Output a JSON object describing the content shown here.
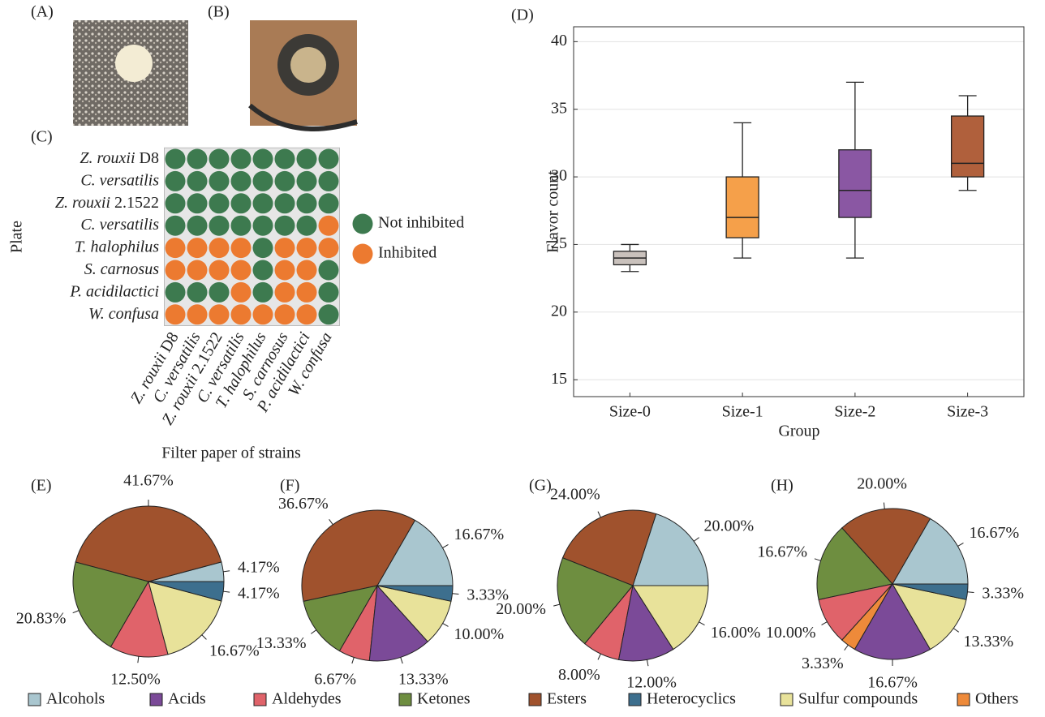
{
  "images": [
    {
      "label": "(A)"
    },
    {
      "label": "(B)"
    }
  ],
  "chart_data": [
    {
      "label": "(C)",
      "type": "matrix",
      "rows": [
        "Z. rouxii D8",
        "C. versatilis",
        "Z. rouxii 2.1522",
        "C. versatilis",
        "T. halophilus",
        "S. carnosus",
        "P. acidilactici",
        "W. confusa"
      ],
      "columns": [
        "Z. rouxii D8",
        "C. versatilis",
        "Z. rouxii 2.1522",
        "C. versatilis",
        "T. halophilus",
        "S. carnosus",
        "P. acidilactici",
        "W. confusa"
      ],
      "values": [
        [
          0,
          0,
          0,
          0,
          0,
          0,
          0,
          0
        ],
        [
          0,
          0,
          0,
          0,
          0,
          0,
          0,
          0
        ],
        [
          0,
          0,
          0,
          0,
          0,
          0,
          0,
          0
        ],
        [
          0,
          0,
          0,
          0,
          0,
          0,
          0,
          1
        ],
        [
          1,
          1,
          1,
          1,
          0,
          1,
          1,
          1
        ],
        [
          1,
          1,
          1,
          1,
          0,
          1,
          1,
          0
        ],
        [
          0,
          0,
          0,
          1,
          0,
          1,
          1,
          0
        ],
        [
          1,
          1,
          1,
          1,
          1,
          1,
          1,
          0
        ]
      ],
      "legend": [
        {
          "name": "Not inhibited",
          "color": "#3d7a4f"
        },
        {
          "name": "Inhibited",
          "color": "#ec7a30"
        }
      ],
      "ylabel": "Plate",
      "xlabel": "Filter paper of strains"
    },
    {
      "label": "(D)",
      "type": "box",
      "categories": [
        "Size-0",
        "Size-1",
        "Size-2",
        "Size-3"
      ],
      "boxes": [
        {
          "min": 23,
          "q1": 23.5,
          "median": 24,
          "q3": 24.5,
          "max": 25,
          "color": "#c9c1bc"
        },
        {
          "min": 24,
          "q1": 25.5,
          "median": 27,
          "q3": 30,
          "max": 34,
          "color": "#f5a04a"
        },
        {
          "min": 24,
          "q1": 27,
          "median": 29,
          "q3": 32,
          "max": 37,
          "color": "#8a57a3"
        },
        {
          "min": 29,
          "q1": 30,
          "median": 31,
          "q3": 34.5,
          "max": 36,
          "color": "#b0603c"
        }
      ],
      "ylim": [
        13.75,
        41.1
      ],
      "yticks": [
        15,
        20,
        25,
        30,
        35,
        40
      ],
      "grid": true,
      "xlabel": "Group",
      "ylabel": "Flavor count"
    },
    {
      "type": "pie",
      "categories": [
        "Alcohols",
        "Acids",
        "Aldehydes",
        "Ketones",
        "Esters",
        "Heterocyclics",
        "Sulfur compounds",
        "Others"
      ],
      "colors": [
        "#a9c6cf",
        "#7b4a98",
        "#e0636a",
        "#6e8e40",
        "#a0522d",
        "#3d6f8e",
        "#e8e29a",
        "#ee8a3a"
      ],
      "pies": [
        {
          "label": "(E)",
          "values": [
            4.17,
            null,
            12.5,
            20.83,
            41.67,
            4.17,
            16.67,
            null
          ],
          "value_labels": [
            "4.17%",
            null,
            "12.50%",
            "20.83%",
            "41.67%",
            "4.17%",
            "16.67%",
            null
          ]
        },
        {
          "label": "(F)",
          "values": [
            16.67,
            13.33,
            6.67,
            13.33,
            36.67,
            3.33,
            10.0,
            null
          ],
          "value_labels": [
            "16.67%",
            "13.33%",
            "6.67%",
            "13.33%",
            "36.67%",
            "3.33%",
            "10.00%",
            null
          ]
        },
        {
          "label": "(G)",
          "values": [
            20.0,
            12.0,
            8.0,
            20.0,
            24.0,
            null,
            16.0,
            null
          ],
          "value_labels": [
            "20.00%",
            "12.00%",
            "8.00%",
            "20.00%",
            "24.00%",
            null,
            "16.00%",
            null
          ]
        },
        {
          "label": "(H)",
          "values": [
            16.67,
            16.67,
            10.0,
            16.67,
            20.0,
            3.33,
            13.33,
            3.33
          ],
          "value_labels": [
            "16.67%",
            "16.67%",
            "10.00%",
            "16.67%",
            "20.00%",
            "3.33%",
            "13.33%",
            "3.33%"
          ]
        }
      ]
    }
  ]
}
